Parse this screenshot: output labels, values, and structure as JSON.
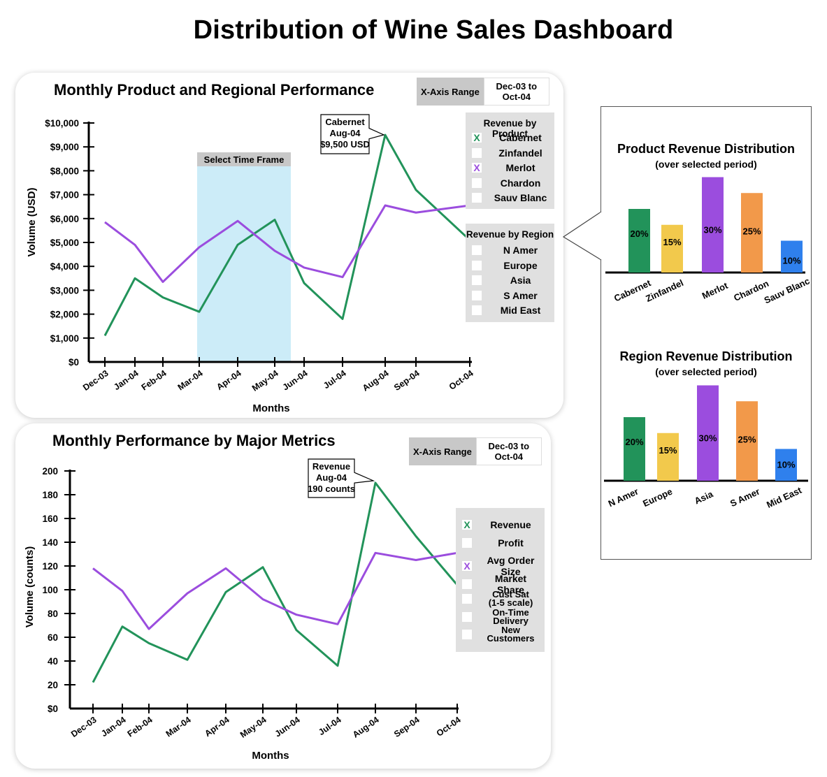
{
  "page_title": "Distribution of Wine Sales Dashboard",
  "panel1": {
    "title": "Monthly Product and Regional Performance",
    "xrange_label": "X-Axis Range",
    "xrange_value_line1": "Dec-03 to",
    "xrange_value_line2": "Oct-04",
    "select_time_frame": "Select Time Frame",
    "callout": [
      "Cabernet",
      "Aug-04",
      "$9,500 USD"
    ],
    "legend_product": {
      "title": "Revenue by Product",
      "items": [
        {
          "label": "Cabernet",
          "checked": true,
          "mark": "X",
          "color": "#22935a"
        },
        {
          "label": "Zinfandel",
          "checked": false,
          "mark": ""
        },
        {
          "label": "Merlot",
          "checked": true,
          "mark": "X",
          "color": "#9b4dde"
        },
        {
          "label": "Chardon",
          "checked": false,
          "mark": ""
        },
        {
          "label": "Sauv Blanc",
          "checked": false,
          "mark": ""
        }
      ]
    },
    "legend_region": {
      "title": "Revenue by Region",
      "items": [
        {
          "label": "N Amer"
        },
        {
          "label": "Europe"
        },
        {
          "label": "Asia"
        },
        {
          "label": "S Amer"
        },
        {
          "label": "Mid East"
        }
      ]
    }
  },
  "panel2": {
    "title": "Monthly Performance by Major Metrics",
    "xrange_label": "X-Axis Range",
    "xrange_value_line1": "Dec-03 to",
    "xrange_value_line2": "Oct-04",
    "callout": [
      "Revenue",
      "Aug-04",
      "190 counts"
    ],
    "legend": {
      "items": [
        {
          "label": "Revenue",
          "checked": true,
          "mark": "X",
          "color": "#22935a"
        },
        {
          "label": "Profit",
          "checked": false,
          "mark": ""
        },
        {
          "label": "Avg Order Size",
          "checked": true,
          "mark": "X",
          "color": "#9b4dde"
        },
        {
          "label": "Market Share",
          "checked": false,
          "mark": ""
        },
        {
          "label": "Cust Sat\n(1-5 scale)",
          "checked": false,
          "mark": ""
        },
        {
          "label": "On-Time\nDelivery",
          "checked": false,
          "mark": ""
        },
        {
          "label": "New\nCustomers",
          "checked": false,
          "mark": ""
        }
      ]
    }
  },
  "colors": {
    "green": "#22935a",
    "purple": "#9b4dde",
    "yellow": "#f2c94c",
    "orange": "#f2994a",
    "blue": "#2f80ed",
    "highlight": "#ccecf8"
  },
  "chart_data": [
    {
      "type": "line",
      "title": "Monthly Product and Regional Performance",
      "xlabel": "Months",
      "ylabel": "Volume (USD)",
      "categories": [
        "Dec-03",
        "Jan-04",
        "Feb-04",
        "Mar-04",
        "Apr-04",
        "May-04",
        "Jun-04",
        "Jul-04",
        "Aug-04",
        "Sep-04",
        "Oct-04"
      ],
      "y_ticks": [
        0,
        1000,
        2000,
        3000,
        4000,
        5000,
        6000,
        7000,
        8000,
        9000,
        10000
      ],
      "y_tick_labels": [
        "$0",
        "$1,000",
        "$2,000",
        "$3,000",
        "$4,000",
        "$5,000",
        "$6,000",
        "$7,000",
        "$8,000",
        "$9,000",
        "$10,000"
      ],
      "ylim": [
        0,
        10000
      ],
      "highlight_range": [
        "Mar-04",
        "May-04"
      ],
      "series": [
        {
          "name": "Cabernet",
          "color": "#22935a",
          "points": [
            [
              "Dec-03",
              1100
            ],
            [
              "Jan-04",
              3500
            ],
            [
              "Feb-04",
              2700
            ],
            [
              "Mar-04",
              2100
            ],
            [
              "Apr-04",
              4900
            ],
            [
              "May-04",
              5950
            ],
            [
              "Jun-04",
              3300
            ],
            [
              "Jul-04",
              1800
            ],
            [
              "Aug-04",
              9500
            ],
            [
              "Sep-04",
              7200
            ],
            [
              "Oct-04",
              5100
            ]
          ]
        },
        {
          "name": "Merlot",
          "color": "#9b4dde",
          "points": [
            [
              "Dec-03",
              5850
            ],
            [
              "Jan-04",
              4900
            ],
            [
              "Feb-04",
              3350
            ],
            [
              "Mar-04",
              4800
            ],
            [
              "Apr-04",
              5900
            ],
            [
              "May-04",
              4650
            ],
            [
              "Jun-04",
              3950
            ],
            [
              "Jul-04",
              3550
            ],
            [
              "Aug-04",
              6550
            ],
            [
              "Sep-04",
              6250
            ],
            [
              "Oct-04",
              6550
            ]
          ]
        }
      ]
    },
    {
      "type": "line",
      "title": "Monthly Performance by Major Metrics",
      "xlabel": "Months",
      "ylabel": "Volume (counts)",
      "categories": [
        "Dec-03",
        "Jan-04",
        "Feb-04",
        "Mar-04",
        "Apr-04",
        "May-04",
        "Jun-04",
        "Jul-04",
        "Aug-04",
        "Sep-04",
        "Oct-04"
      ],
      "y_ticks": [
        0,
        20,
        40,
        60,
        80,
        100,
        120,
        140,
        160,
        180,
        200
      ],
      "y_tick_labels": [
        "$0",
        "20",
        "40",
        "60",
        "80",
        "100",
        "120",
        "140",
        "160",
        "180",
        "200"
      ],
      "ylim": [
        0,
        200
      ],
      "series": [
        {
          "name": "Revenue",
          "color": "#22935a",
          "points": [
            [
              "Dec-03",
              22
            ],
            [
              "Jan-04",
              69
            ],
            [
              "Feb-04",
              55
            ],
            [
              "Mar-04",
              41
            ],
            [
              "Apr-04",
              98
            ],
            [
              "May-04",
              119
            ],
            [
              "Jun-04",
              66
            ],
            [
              "Jul-04",
              36
            ],
            [
              "Aug-04",
              190
            ],
            [
              "Sep-04",
              145
            ],
            [
              "Oct-04",
              104
            ]
          ]
        },
        {
          "name": "Avg Order Size",
          "color": "#9b4dde",
          "points": [
            [
              "Dec-03",
              118
            ],
            [
              "Jan-04",
              99
            ],
            [
              "Feb-04",
              67
            ],
            [
              "Mar-04",
              97
            ],
            [
              "Apr-04",
              118
            ],
            [
              "May-04",
              92
            ],
            [
              "Jun-04",
              79
            ],
            [
              "Jul-04",
              71
            ],
            [
              "Aug-04",
              131
            ],
            [
              "Sep-04",
              125
            ],
            [
              "Oct-04",
              131
            ]
          ]
        }
      ]
    },
    {
      "type": "bar",
      "title": "Product Revenue Distribution",
      "subtitle": "(over selected period)",
      "categories": [
        "Cabernet",
        "Zinfandel",
        "Merlot",
        "Chardon",
        "Sauv Blanc"
      ],
      "values": [
        20,
        15,
        30,
        25,
        10
      ],
      "value_labels": [
        "20%",
        "15%",
        "30%",
        "25%",
        "10%"
      ],
      "colors": [
        "#22935a",
        "#f2c94c",
        "#9b4dde",
        "#f2994a",
        "#2f80ed"
      ]
    },
    {
      "type": "bar",
      "title": "Region Revenue Distribution",
      "subtitle": "(over selected period)",
      "categories": [
        "N Amer",
        "Europe",
        "Asia",
        "S Amer",
        "Mid East"
      ],
      "values": [
        20,
        15,
        30,
        25,
        10
      ],
      "value_labels": [
        "20%",
        "15%",
        "30%",
        "25%",
        "10%"
      ],
      "colors": [
        "#22935a",
        "#f2c94c",
        "#9b4dde",
        "#f2994a",
        "#2f80ed"
      ]
    }
  ]
}
